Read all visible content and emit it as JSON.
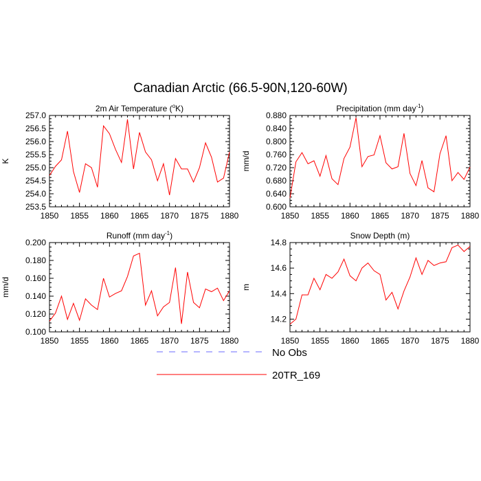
{
  "figure": {
    "title": "Canadian Arctic (66.5-90N,120-60W)"
  },
  "legend": {
    "items": [
      {
        "label": "No Obs",
        "color": "#6b6bff",
        "dash": "dashed"
      },
      {
        "label": "20TR_169",
        "color": "#ff0000",
        "dash": "solid"
      }
    ]
  },
  "chart_data": [
    {
      "type": "line",
      "title_main": "2m Air Temperature (",
      "title_sup": "o",
      "title_tail": "K)",
      "xlabel": "",
      "ylabel": "K",
      "xlim": [
        1850,
        1880
      ],
      "ylim": [
        253.5,
        257.0
      ],
      "xticks": [
        1850,
        1855,
        1860,
        1865,
        1870,
        1875,
        1880
      ],
      "yticks": [
        "253.5",
        "254.0",
        "254.5",
        "255.0",
        "255.5",
        "256.0",
        "256.5",
        "257.0"
      ],
      "series": [
        {
          "name": "20TR_169",
          "color": "#ff0000",
          "x": [
            1850,
            1851,
            1852,
            1853,
            1854,
            1855,
            1856,
            1857,
            1858,
            1859,
            1860,
            1861,
            1862,
            1863,
            1864,
            1865,
            1866,
            1867,
            1868,
            1869,
            1870,
            1871,
            1872,
            1873,
            1874,
            1875,
            1876,
            1877,
            1878,
            1879,
            1880
          ],
          "values": [
            254.7,
            255.05,
            255.3,
            256.4,
            254.85,
            254.05,
            255.15,
            255.0,
            254.25,
            256.6,
            256.3,
            255.7,
            255.2,
            256.85,
            254.95,
            256.35,
            255.6,
            255.3,
            254.5,
            255.15,
            253.95,
            255.35,
            254.95,
            254.95,
            254.45,
            255.0,
            255.95,
            255.4,
            254.45,
            254.6,
            255.6
          ]
        }
      ]
    },
    {
      "type": "line",
      "title_main": "Precipitation (mm day",
      "title_sup": "-1",
      "title_tail": ")",
      "xlabel": "",
      "ylabel": "mm/d",
      "xlim": [
        1850,
        1880
      ],
      "ylim": [
        0.6,
        0.88
      ],
      "xticks": [
        1850,
        1855,
        1860,
        1865,
        1870,
        1875,
        1880
      ],
      "yticks": [
        "0.600",
        "0.640",
        "0.680",
        "0.720",
        "0.760",
        "0.800",
        "0.840",
        "0.880"
      ],
      "series": [
        {
          "name": "20TR_169",
          "color": "#ff0000",
          "x": [
            1850,
            1851,
            1852,
            1853,
            1854,
            1855,
            1856,
            1857,
            1858,
            1859,
            1860,
            1861,
            1862,
            1863,
            1864,
            1865,
            1866,
            1867,
            1868,
            1869,
            1870,
            1871,
            1872,
            1873,
            1874,
            1875,
            1876,
            1877,
            1878,
            1879,
            1880
          ],
          "values": [
            0.627,
            0.738,
            0.766,
            0.732,
            0.741,
            0.694,
            0.757,
            0.686,
            0.668,
            0.748,
            0.783,
            0.873,
            0.723,
            0.754,
            0.759,
            0.818,
            0.735,
            0.716,
            0.723,
            0.825,
            0.702,
            0.665,
            0.742,
            0.658,
            0.646,
            0.763,
            0.818,
            0.68,
            0.705,
            0.684,
            0.722
          ]
        }
      ]
    },
    {
      "type": "line",
      "title_main": "Runoff (mm day",
      "title_sup": "-1",
      "title_tail": ")",
      "xlabel": "",
      "ylabel": "mm/d",
      "xlim": [
        1850,
        1880
      ],
      "ylim": [
        0.1,
        0.2
      ],
      "xticks": [
        1850,
        1855,
        1860,
        1865,
        1870,
        1875,
        1880
      ],
      "yticks": [
        "0.100",
        "0.120",
        "0.140",
        "0.160",
        "0.180",
        "0.200"
      ],
      "series": [
        {
          "name": "20TR_169",
          "color": "#ff0000",
          "x": [
            1850,
            1851,
            1852,
            1853,
            1854,
            1855,
            1856,
            1857,
            1858,
            1859,
            1860,
            1861,
            1862,
            1863,
            1864,
            1865,
            1866,
            1867,
            1868,
            1869,
            1870,
            1871,
            1872,
            1873,
            1874,
            1875,
            1876,
            1877,
            1878,
            1879,
            1880
          ],
          "values": [
            0.112,
            0.121,
            0.14,
            0.114,
            0.132,
            0.113,
            0.137,
            0.13,
            0.125,
            0.16,
            0.139,
            0.143,
            0.146,
            0.162,
            0.185,
            0.188,
            0.13,
            0.146,
            0.118,
            0.128,
            0.133,
            0.172,
            0.109,
            0.167,
            0.133,
            0.127,
            0.148,
            0.145,
            0.149,
            0.135,
            0.146
          ]
        }
      ]
    },
    {
      "type": "line",
      "title_main": "Snow Depth (m)",
      "title_sup": "",
      "title_tail": "",
      "xlabel": "",
      "ylabel": "m",
      "xlim": [
        1850,
        1880
      ],
      "ylim": [
        14.1,
        14.8
      ],
      "xticks": [
        1850,
        1855,
        1860,
        1865,
        1870,
        1875,
        1880
      ],
      "yticks": [
        "14.2",
        "14.4",
        "14.6",
        "14.8"
      ],
      "series": [
        {
          "name": "20TR_169",
          "color": "#ff0000",
          "x": [
            1850,
            1851,
            1852,
            1853,
            1854,
            1855,
            1856,
            1857,
            1858,
            1859,
            1860,
            1861,
            1862,
            1863,
            1864,
            1865,
            1866,
            1867,
            1868,
            1869,
            1870,
            1871,
            1872,
            1873,
            1874,
            1875,
            1876,
            1877,
            1878,
            1879,
            1880
          ],
          "values": [
            14.16,
            14.2,
            14.39,
            14.39,
            14.52,
            14.43,
            14.55,
            14.52,
            14.57,
            14.67,
            14.54,
            14.5,
            14.6,
            14.64,
            14.58,
            14.55,
            14.35,
            14.41,
            14.28,
            14.42,
            14.53,
            14.68,
            14.55,
            14.66,
            14.62,
            14.64,
            14.65,
            14.76,
            14.78,
            14.73,
            14.77
          ]
        }
      ]
    }
  ]
}
